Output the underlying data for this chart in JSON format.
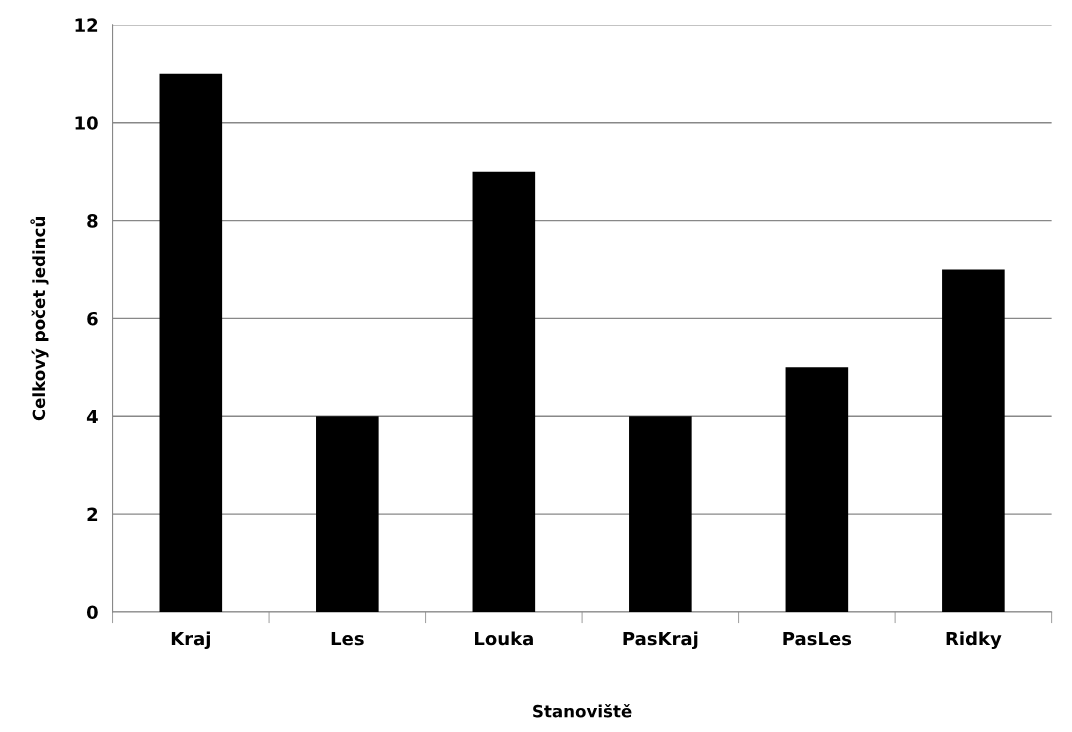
{
  "chart_data": {
    "type": "bar",
    "xlabel": "Stanoviště",
    "ylabel": "Celkový počet jedinců",
    "categories": [
      "Kraj",
      "Les",
      "Louka",
      "PasKraj",
      "PasLes",
      "Ridky"
    ],
    "values": [
      11,
      4,
      9,
      4,
      5,
      7
    ],
    "color": "#000000",
    "ylim": [
      0,
      12
    ],
    "yticks": [
      0,
      2,
      4,
      6,
      8,
      10,
      12
    ],
    "grid": "y"
  }
}
